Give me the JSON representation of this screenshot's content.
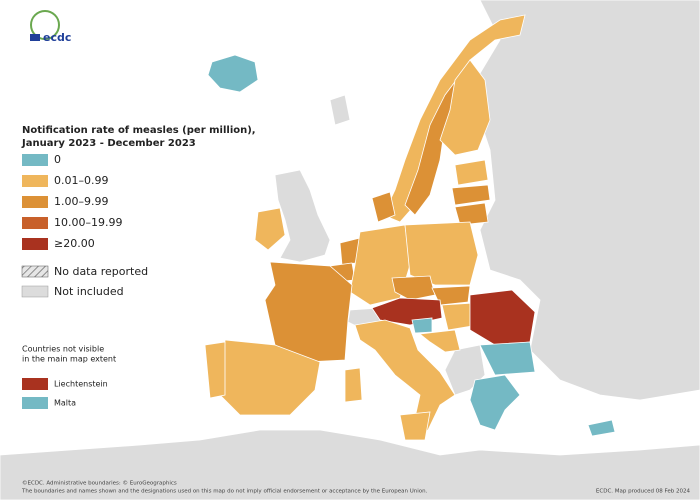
{
  "logo": {
    "text": "ecdc"
  },
  "legend": {
    "title": "Notification rate of measles (per million),",
    "subtitle": "January 2023 - December 2023",
    "items": [
      {
        "label": "0",
        "color": "#74b9c4"
      },
      {
        "label": "0.01–0.99",
        "color": "#efb65c"
      },
      {
        "label": "1.00–9.99",
        "color": "#dc9136"
      },
      {
        "label": "10.00–19.99",
        "color": "#c8602a"
      },
      {
        "label": "≥20.00",
        "color": "#a9321f"
      }
    ],
    "no_data": "No data reported",
    "not_included": "Not included"
  },
  "inset_legend": {
    "title_lines": [
      "Countries not visible",
      "in the main map extent"
    ],
    "items": [
      {
        "label": "Liechtenstein",
        "color": "#a9321f"
      },
      {
        "label": "Malta",
        "color": "#74b9c4"
      }
    ]
  },
  "footer": {
    "line1": "©ECDC. Administrative boundaries: © EuroGeographics",
    "line2": "The boundaries and names shown and the designations used on this map do not imply official endorsement or acceptance by the European Union.",
    "credit": "ECDC. Map produced 08 Feb 2024"
  }
}
